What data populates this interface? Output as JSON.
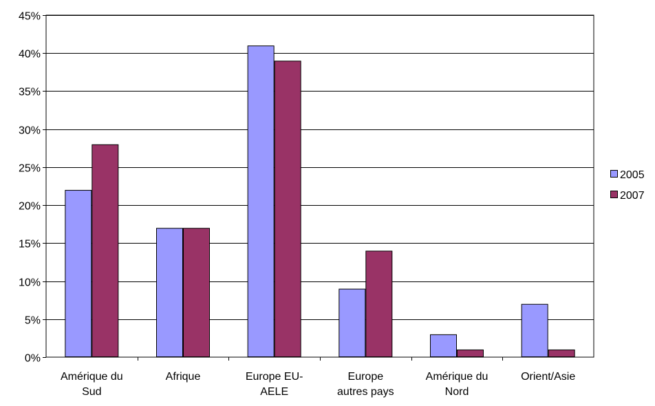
{
  "chart_data": {
    "type": "bar",
    "title": "",
    "xlabel": "",
    "ylabel": "",
    "categories": [
      [
        "Amérique du",
        "Sud"
      ],
      [
        "Afrique"
      ],
      [
        "Europe EU-",
        "AELE"
      ],
      [
        "Europe",
        "autres pays"
      ],
      [
        "Amérique du",
        "Nord"
      ],
      [
        "Orient/Asie"
      ]
    ],
    "series": [
      {
        "name": "2005",
        "color": "#9999ff",
        "values": [
          22,
          17,
          41,
          9,
          3,
          7
        ]
      },
      {
        "name": "2007",
        "color": "#993366",
        "values": [
          28,
          17,
          39,
          14,
          1,
          1
        ]
      }
    ],
    "ylim": [
      0,
      45
    ],
    "yticks": [
      0,
      5,
      10,
      15,
      20,
      25,
      30,
      35,
      40,
      45
    ],
    "ytick_labels": [
      "0%",
      "5%",
      "10%",
      "15%",
      "20%",
      "25%",
      "30%",
      "35%",
      "40%",
      "45%"
    ],
    "grid": true,
    "legend_position": "right"
  }
}
